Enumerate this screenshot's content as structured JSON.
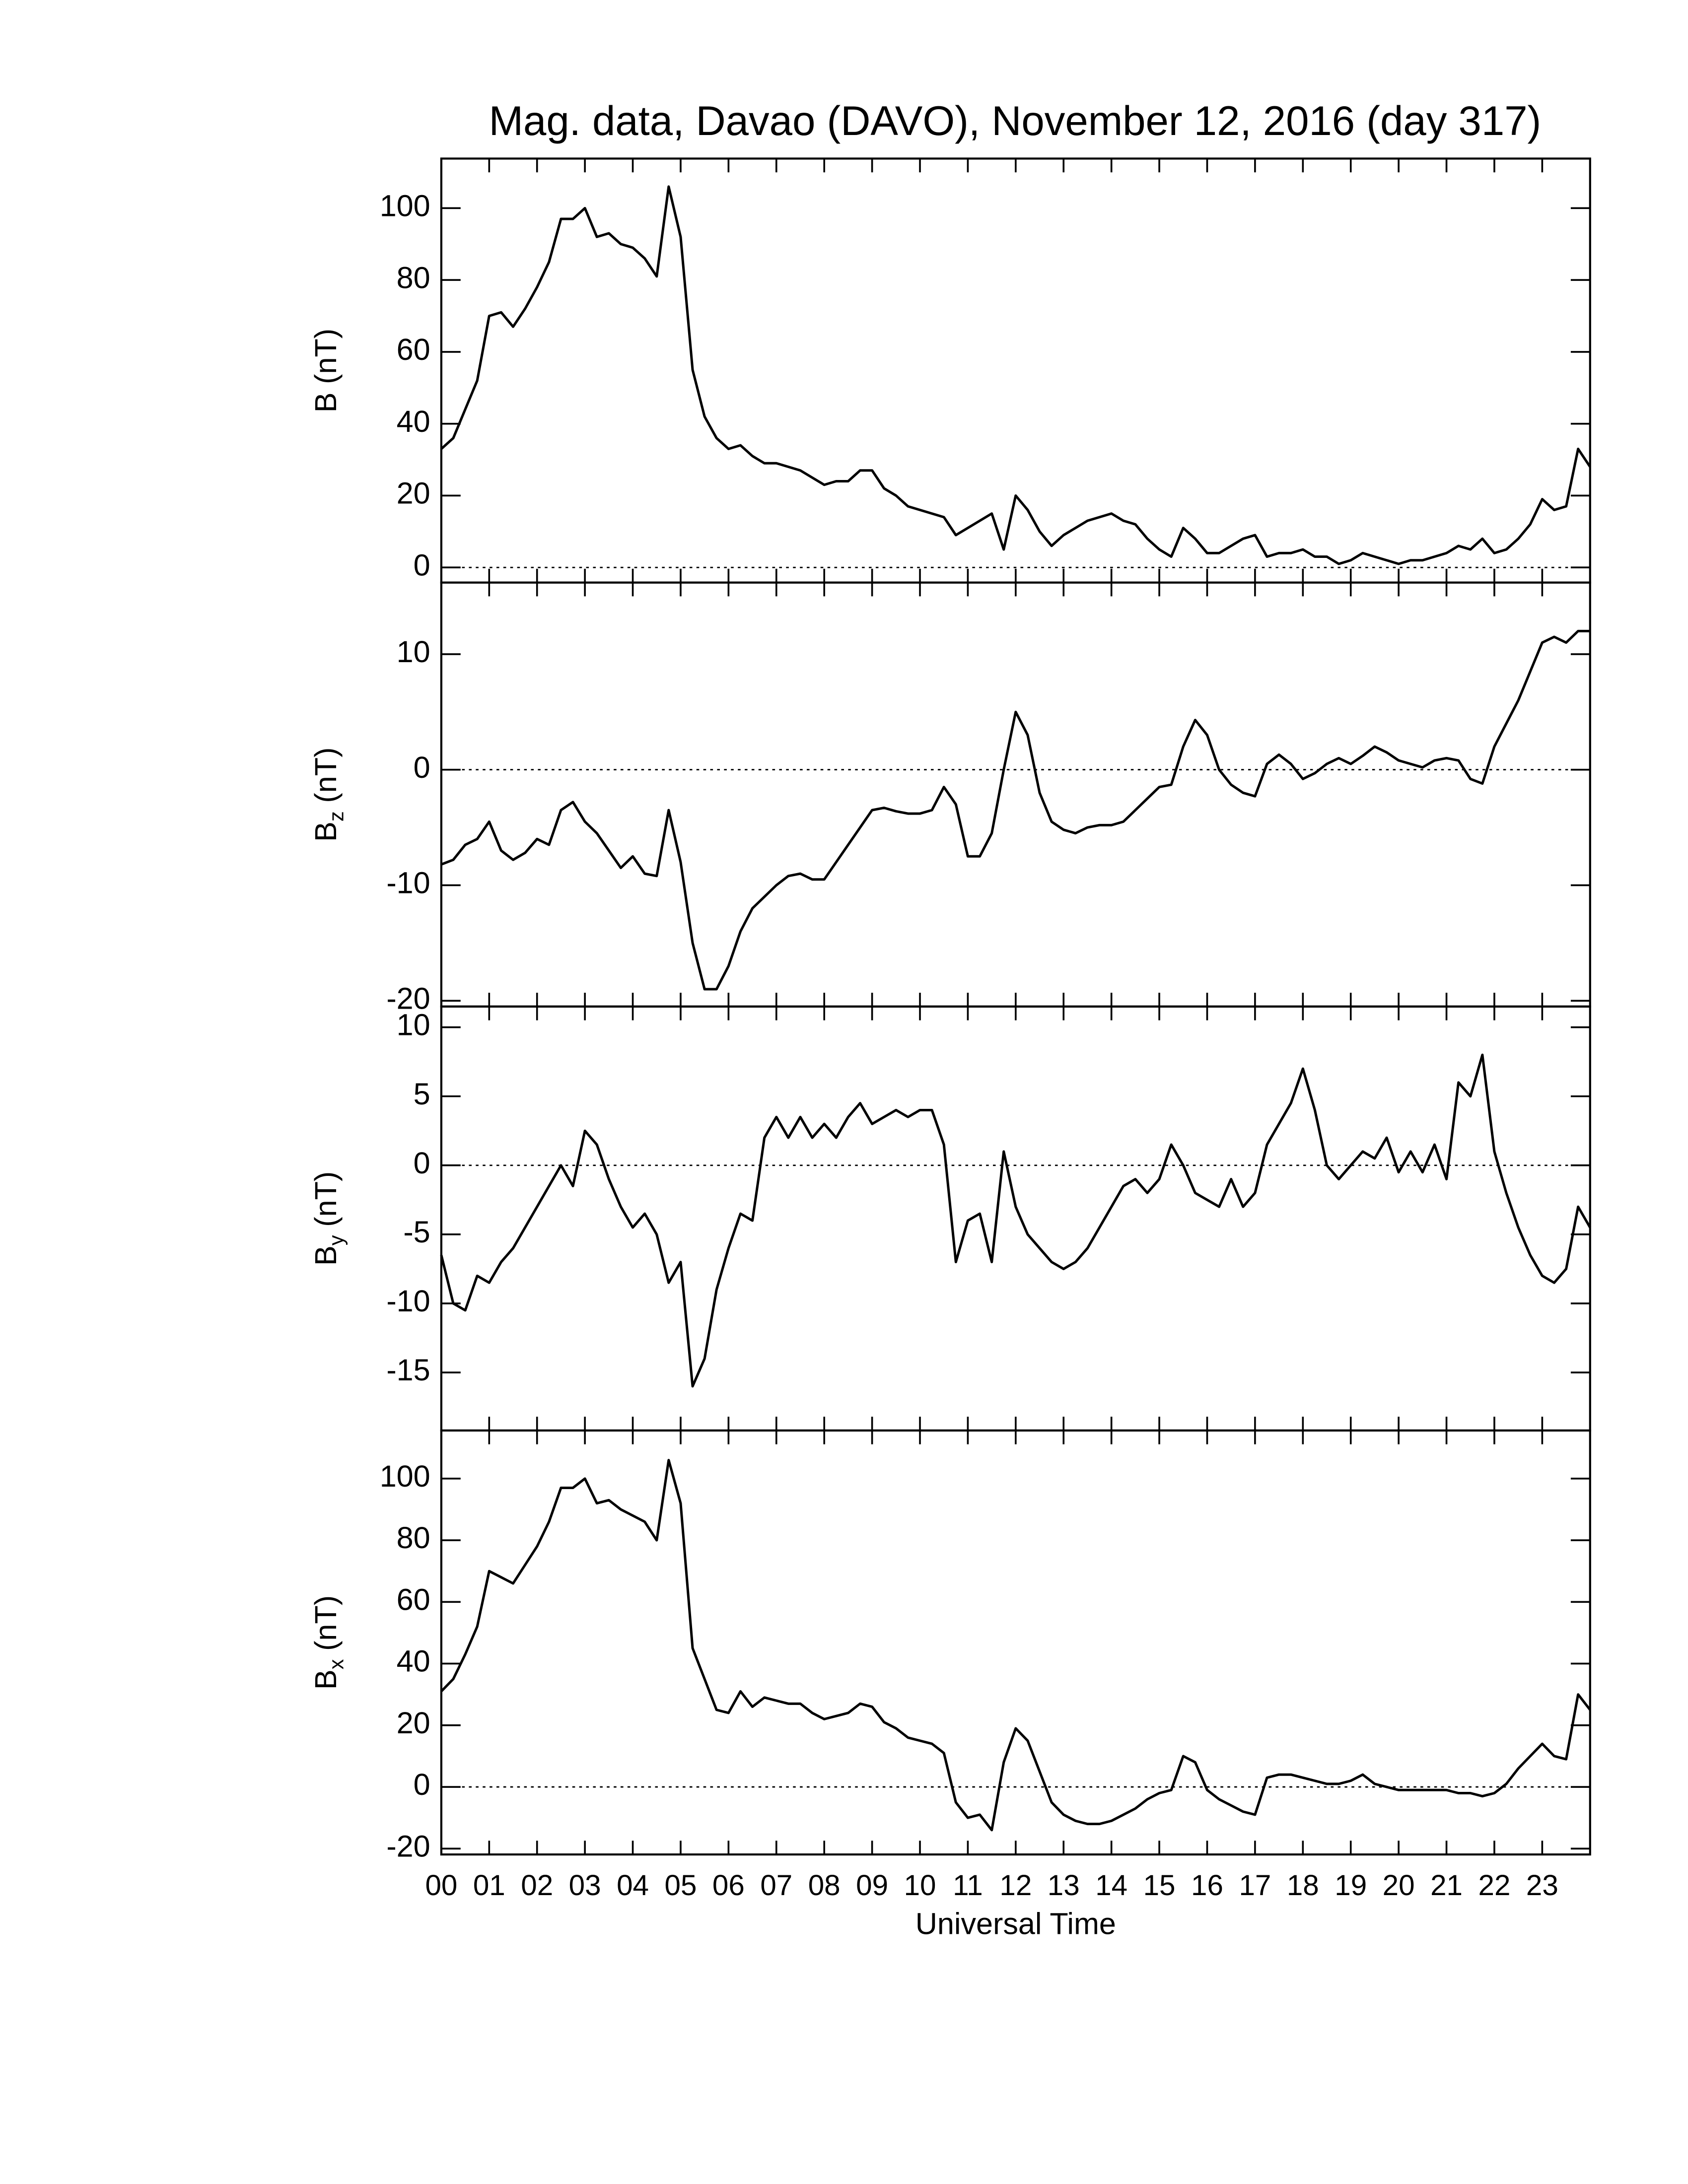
{
  "chart_data": [
    {
      "type": "line",
      "title": "Mag. data, Davao (DAVO), November 12, 2016 (day 317)",
      "y_label": "B",
      "y_label_unit": "(nT)",
      "zero_line": true,
      "xlim": [
        0,
        24
      ],
      "ylim": [
        -4.2,
        113.8
      ],
      "yticks": [
        0,
        20,
        40,
        60,
        80,
        100
      ],
      "x": [
        0,
        0.25,
        0.5,
        0.75,
        1,
        1.25,
        1.5,
        1.75,
        2,
        2.25,
        2.5,
        2.75,
        3,
        3.25,
        3.5,
        3.75,
        4,
        4.25,
        4.5,
        4.75,
        5,
        5.25,
        5.5,
        5.75,
        6,
        6.25,
        6.5,
        6.75,
        7,
        7.25,
        7.5,
        7.75,
        8,
        8.25,
        8.5,
        8.75,
        9,
        9.25,
        9.5,
        9.75,
        10,
        10.25,
        10.5,
        10.75,
        11,
        11.25,
        11.5,
        11.75,
        12,
        12.25,
        12.5,
        12.75,
        13,
        13.25,
        13.5,
        13.75,
        14,
        14.25,
        14.5,
        14.75,
        15,
        15.25,
        15.5,
        15.75,
        16,
        16.25,
        16.5,
        16.75,
        17,
        17.25,
        17.5,
        17.75,
        18,
        18.25,
        18.5,
        18.75,
        19,
        19.25,
        19.5,
        19.75,
        20,
        20.25,
        20.5,
        20.75,
        21,
        21.25,
        21.5,
        21.75,
        22,
        22.25,
        22.5,
        22.75,
        23,
        23.25,
        23.5,
        23.75,
        24
      ],
      "series": [
        {
          "color": "#000000",
          "values": [
            33,
            36,
            44,
            52,
            70,
            71,
            67,
            72,
            78,
            85,
            97,
            97,
            100,
            92,
            93,
            90,
            89,
            86,
            81,
            106,
            92,
            55,
            42,
            36,
            33,
            34,
            31,
            29,
            29,
            28,
            27,
            25,
            23,
            24,
            24,
            27,
            27,
            22,
            20,
            17,
            16,
            15,
            14,
            9,
            11,
            13,
            15,
            5,
            20,
            16,
            10,
            6,
            9,
            11,
            13,
            14,
            15,
            13,
            12,
            8,
            5,
            3,
            11,
            8,
            4,
            4,
            6,
            8,
            9,
            3,
            4,
            4,
            5,
            3,
            3,
            1,
            2,
            4,
            3,
            2,
            1,
            2,
            2,
            3,
            4,
            6,
            5,
            8,
            4,
            5,
            8,
            12,
            19,
            16,
            17,
            33,
            28
          ]
        }
      ]
    },
    {
      "type": "line",
      "y_label": "B",
      "y_label_sub": "z",
      "y_label_unit": "(nT)",
      "zero_line": true,
      "xlim": [
        0,
        24
      ],
      "ylim": [
        -20.5,
        16.2
      ],
      "yticks": [
        -20,
        -10,
        0,
        10
      ],
      "x": [
        0,
        0.25,
        0.5,
        0.75,
        1,
        1.25,
        1.5,
        1.75,
        2,
        2.25,
        2.5,
        2.75,
        3,
        3.25,
        3.5,
        3.75,
        4,
        4.25,
        4.5,
        4.75,
        5,
        5.25,
        5.5,
        5.75,
        6,
        6.25,
        6.5,
        6.75,
        7,
        7.25,
        7.5,
        7.75,
        8,
        8.25,
        8.5,
        8.75,
        9,
        9.25,
        9.5,
        9.75,
        10,
        10.25,
        10.5,
        10.75,
        11,
        11.25,
        11.5,
        11.75,
        12,
        12.25,
        12.5,
        12.75,
        13,
        13.25,
        13.5,
        13.75,
        14,
        14.25,
        14.5,
        14.75,
        15,
        15.25,
        15.5,
        15.75,
        16,
        16.25,
        16.5,
        16.75,
        17,
        17.25,
        17.5,
        17.75,
        18,
        18.25,
        18.5,
        18.75,
        19,
        19.25,
        19.5,
        19.75,
        20,
        20.25,
        20.5,
        20.75,
        21,
        21.25,
        21.5,
        21.75,
        22,
        22.25,
        22.5,
        22.75,
        23,
        23.25,
        23.5,
        23.75,
        24
      ],
      "series": [
        {
          "color": "#000000",
          "values": [
            -8.2,
            -7.8,
            -6.5,
            -6,
            -4.5,
            -7,
            -7.8,
            -7.2,
            -6,
            -6.5,
            -3.5,
            -2.8,
            -4.5,
            -5.5,
            -7,
            -8.5,
            -7.5,
            -9,
            -9.2,
            -3.5,
            -8,
            -15,
            -19,
            -19,
            -17,
            -14,
            -12,
            -11,
            -10,
            -9.2,
            -9,
            -9.5,
            -9.5,
            -8,
            -6.5,
            -5,
            -3.5,
            -3.3,
            -3.6,
            -3.8,
            -3.8,
            -3.5,
            -1.5,
            -3,
            -7.5,
            -7.5,
            -5.5,
            0,
            5,
            3,
            -2,
            -4.5,
            -5.2,
            -5.5,
            -5,
            -4.8,
            -4.8,
            -4.5,
            -3.5,
            -2.5,
            -1.5,
            -1.3,
            2,
            4.3,
            3,
            0,
            -1.3,
            -2,
            -2.3,
            0.5,
            1.3,
            0.5,
            -0.8,
            -0.3,
            0.5,
            1,
            0.5,
            1.2,
            2,
            1.5,
            0.8,
            0.5,
            0.2,
            0.8,
            1,
            0.8,
            -0.8,
            -1.2,
            2,
            4,
            6,
            8.5,
            11,
            11.5,
            11,
            12,
            12
          ]
        }
      ]
    },
    {
      "type": "line",
      "y_label": "B",
      "y_label_sub": "y",
      "y_label_unit": "(nT)",
      "zero_line": true,
      "xlim": [
        0,
        24
      ],
      "ylim": [
        -19.2,
        11.5
      ],
      "yticks": [
        -15,
        -10,
        -5,
        0,
        5,
        10
      ],
      "x": [
        0,
        0.25,
        0.5,
        0.75,
        1,
        1.25,
        1.5,
        1.75,
        2,
        2.25,
        2.5,
        2.75,
        3,
        3.25,
        3.5,
        3.75,
        4,
        4.25,
        4.5,
        4.75,
        5,
        5.25,
        5.5,
        5.75,
        6,
        6.25,
        6.5,
        6.75,
        7,
        7.25,
        7.5,
        7.75,
        8,
        8.25,
        8.5,
        8.75,
        9,
        9.25,
        9.5,
        9.75,
        10,
        10.25,
        10.5,
        10.75,
        11,
        11.25,
        11.5,
        11.75,
        12,
        12.25,
        12.5,
        12.75,
        13,
        13.25,
        13.5,
        13.75,
        14,
        14.25,
        14.5,
        14.75,
        15,
        15.25,
        15.5,
        15.75,
        16,
        16.25,
        16.5,
        16.75,
        17,
        17.25,
        17.5,
        17.75,
        18,
        18.25,
        18.5,
        18.75,
        19,
        19.25,
        19.5,
        19.75,
        20,
        20.25,
        20.5,
        20.75,
        21,
        21.25,
        21.5,
        21.75,
        22,
        22.25,
        22.5,
        22.75,
        23,
        23.25,
        23.5,
        23.75,
        24
      ],
      "series": [
        {
          "color": "#000000",
          "values": [
            -6.5,
            -10,
            -10.5,
            -8,
            -8.5,
            -7,
            -6,
            -4.5,
            -3,
            -1.5,
            0,
            -1.5,
            2.5,
            1.5,
            -1,
            -3,
            -4.5,
            -3.5,
            -5,
            -8.5,
            -7,
            -16,
            -14,
            -9,
            -6,
            -3.5,
            -4,
            2,
            3.5,
            2,
            3.5,
            2,
            3,
            2,
            3.5,
            4.5,
            3,
            3.5,
            4,
            3.5,
            4,
            4,
            1.5,
            -7,
            -4,
            -3.5,
            -7,
            1,
            -3,
            -5,
            -6,
            -7,
            -7.5,
            -7,
            -6,
            -4.5,
            -3,
            -1.5,
            -1,
            -2,
            -1,
            1.5,
            0,
            -2,
            -2.5,
            -3,
            -1,
            -3,
            -2,
            1.5,
            3,
            4.5,
            7,
            4,
            0,
            -1,
            0,
            1,
            0.5,
            2,
            -0.5,
            1,
            -0.5,
            1.5,
            -1,
            6,
            5,
            8,
            1,
            -2,
            -4.5,
            -6.5,
            -8,
            -8.5,
            -7.5,
            -3,
            -4.5
          ]
        }
      ]
    },
    {
      "type": "line",
      "y_label": "B",
      "y_label_sub": "x",
      "y_label_unit": "(nT)",
      "zero_line": true,
      "x_label": "Universal Time",
      "xlim": [
        0,
        24
      ],
      "ylim": [
        -21.9,
        115.6
      ],
      "yticks": [
        -20,
        0,
        20,
        40,
        60,
        80,
        100
      ],
      "xticks": [
        {
          "value": 0,
          "label": "00"
        },
        {
          "value": 1,
          "label": "01"
        },
        {
          "value": 2,
          "label": "02"
        },
        {
          "value": 3,
          "label": "03"
        },
        {
          "value": 4,
          "label": "04"
        },
        {
          "value": 5,
          "label": "05"
        },
        {
          "value": 6,
          "label": "06"
        },
        {
          "value": 7,
          "label": "07"
        },
        {
          "value": 8,
          "label": "08"
        },
        {
          "value": 9,
          "label": "09"
        },
        10,
        11,
        12,
        13,
        14,
        15,
        16,
        17,
        18,
        19,
        20,
        21,
        22,
        23
      ],
      "x": [
        0,
        0.25,
        0.5,
        0.75,
        1,
        1.25,
        1.5,
        1.75,
        2,
        2.25,
        2.5,
        2.75,
        3,
        3.25,
        3.5,
        3.75,
        4,
        4.25,
        4.5,
        4.75,
        5,
        5.25,
        5.5,
        5.75,
        6,
        6.25,
        6.5,
        6.75,
        7,
        7.25,
        7.5,
        7.75,
        8,
        8.25,
        8.5,
        8.75,
        9,
        9.25,
        9.5,
        9.75,
        10,
        10.25,
        10.5,
        10.75,
        11,
        11.25,
        11.5,
        11.75,
        12,
        12.25,
        12.5,
        12.75,
        13,
        13.25,
        13.5,
        13.75,
        14,
        14.25,
        14.5,
        14.75,
        15,
        15.25,
        15.5,
        15.75,
        16,
        16.25,
        16.5,
        16.75,
        17,
        17.25,
        17.5,
        17.75,
        18,
        18.25,
        18.5,
        18.75,
        19,
        19.25,
        19.5,
        19.75,
        20,
        20.25,
        20.5,
        20.75,
        21,
        21.25,
        21.5,
        21.75,
        22,
        22.25,
        22.5,
        22.75,
        23,
        23.25,
        23.5,
        23.75,
        24
      ],
      "series": [
        {
          "color": "#000000",
          "values": [
            31,
            35,
            43,
            52,
            70,
            68,
            66,
            72,
            78,
            86,
            97,
            97,
            100,
            92,
            93,
            90,
            88,
            86,
            80,
            106,
            92,
            45,
            35,
            25,
            24,
            31,
            26,
            29,
            28,
            27,
            27,
            24,
            22,
            23,
            24,
            27,
            26,
            21,
            19,
            16,
            15,
            14,
            11,
            -5,
            -10,
            -9,
            -14,
            8,
            19,
            15,
            5,
            -5,
            -9,
            -11,
            -12,
            -12,
            -11,
            -9,
            -7,
            -4,
            -2,
            -1,
            10,
            8,
            -1,
            -4,
            -6,
            -8,
            -9,
            3,
            4,
            4,
            3,
            2,
            1,
            1,
            2,
            4,
            1,
            0,
            -1,
            -1,
            -1,
            -1,
            -1,
            -2,
            -2,
            -3,
            -2,
            1,
            6,
            10,
            14,
            10,
            9,
            30,
            25
          ]
        }
      ]
    }
  ]
}
